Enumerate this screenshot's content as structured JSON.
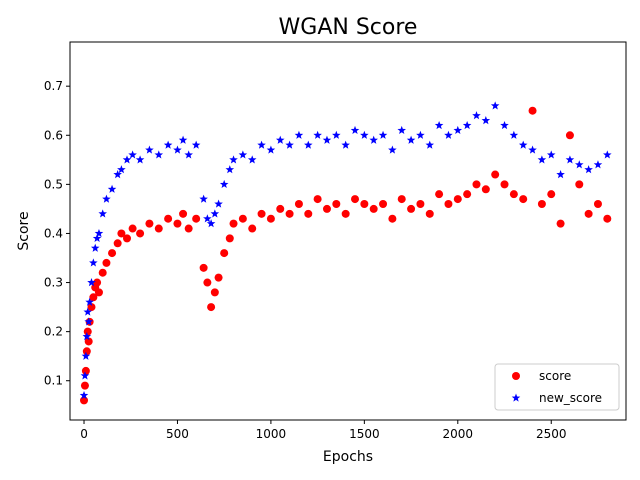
{
  "chart_data": {
    "type": "scatter",
    "title": "WGAN Score",
    "xlabel": "Epochs",
    "ylabel": "Score",
    "xlim": [
      -75,
      2900
    ],
    "ylim": [
      0.02,
      0.79
    ],
    "xticks": [
      0,
      500,
      1000,
      1500,
      2000,
      2500
    ],
    "yticks": [
      0.1,
      0.2,
      0.3,
      0.4,
      0.5,
      0.6,
      0.7
    ],
    "grid": false,
    "legend_position": "lower-right",
    "colors": {
      "score": "#ff0000",
      "new_score": "#0000ff"
    },
    "series": [
      {
        "name": "score",
        "marker": "circle",
        "x": [
          0,
          5,
          10,
          15,
          20,
          25,
          30,
          40,
          50,
          60,
          70,
          80,
          100,
          120,
          150,
          180,
          200,
          230,
          260,
          300,
          350,
          400,
          450,
          500,
          530,
          560,
          600,
          640,
          660,
          680,
          700,
          720,
          750,
          780,
          800,
          850,
          900,
          950,
          1000,
          1050,
          1100,
          1150,
          1200,
          1250,
          1300,
          1350,
          1400,
          1450,
          1500,
          1550,
          1600,
          1650,
          1700,
          1750,
          1800,
          1850,
          1900,
          1950,
          2000,
          2050,
          2100,
          2150,
          2200,
          2250,
          2300,
          2350,
          2400,
          2450,
          2500,
          2550,
          2600,
          2650,
          2700,
          2750,
          2800
        ],
        "y": [
          0.06,
          0.09,
          0.12,
          0.16,
          0.2,
          0.18,
          0.22,
          0.25,
          0.27,
          0.29,
          0.3,
          0.28,
          0.32,
          0.34,
          0.36,
          0.38,
          0.4,
          0.39,
          0.41,
          0.4,
          0.42,
          0.41,
          0.43,
          0.42,
          0.44,
          0.41,
          0.43,
          0.33,
          0.3,
          0.25,
          0.28,
          0.31,
          0.36,
          0.39,
          0.42,
          0.43,
          0.41,
          0.44,
          0.43,
          0.45,
          0.44,
          0.46,
          0.44,
          0.47,
          0.45,
          0.46,
          0.44,
          0.47,
          0.46,
          0.45,
          0.46,
          0.43,
          0.47,
          0.45,
          0.46,
          0.44,
          0.48,
          0.46,
          0.47,
          0.48,
          0.5,
          0.49,
          0.52,
          0.5,
          0.48,
          0.47,
          0.65,
          0.46,
          0.48,
          0.42,
          0.6,
          0.5,
          0.44,
          0.46,
          0.43
        ]
      },
      {
        "name": "new_score",
        "marker": "star",
        "x": [
          0,
          5,
          10,
          15,
          20,
          25,
          30,
          40,
          50,
          60,
          70,
          80,
          100,
          120,
          150,
          180,
          200,
          230,
          260,
          300,
          350,
          400,
          450,
          500,
          530,
          560,
          600,
          640,
          660,
          680,
          700,
          720,
          750,
          780,
          800,
          850,
          900,
          950,
          1000,
          1050,
          1100,
          1150,
          1200,
          1250,
          1300,
          1350,
          1400,
          1450,
          1500,
          1550,
          1600,
          1650,
          1700,
          1750,
          1800,
          1850,
          1900,
          1950,
          2000,
          2050,
          2100,
          2150,
          2200,
          2250,
          2300,
          2350,
          2400,
          2450,
          2500,
          2550,
          2600,
          2650,
          2700,
          2750,
          2800
        ],
        "y": [
          0.07,
          0.11,
          0.15,
          0.19,
          0.24,
          0.22,
          0.26,
          0.3,
          0.34,
          0.37,
          0.39,
          0.4,
          0.44,
          0.47,
          0.49,
          0.52,
          0.53,
          0.55,
          0.56,
          0.55,
          0.57,
          0.56,
          0.58,
          0.57,
          0.59,
          0.56,
          0.58,
          0.47,
          0.43,
          0.42,
          0.44,
          0.46,
          0.5,
          0.53,
          0.55,
          0.56,
          0.55,
          0.58,
          0.57,
          0.59,
          0.58,
          0.6,
          0.58,
          0.6,
          0.59,
          0.6,
          0.58,
          0.61,
          0.6,
          0.59,
          0.6,
          0.57,
          0.61,
          0.59,
          0.6,
          0.58,
          0.62,
          0.6,
          0.61,
          0.62,
          0.64,
          0.63,
          0.66,
          0.62,
          0.6,
          0.58,
          0.57,
          0.55,
          0.56,
          0.52,
          0.55,
          0.54,
          0.53,
          0.54,
          0.56
        ]
      }
    ]
  }
}
